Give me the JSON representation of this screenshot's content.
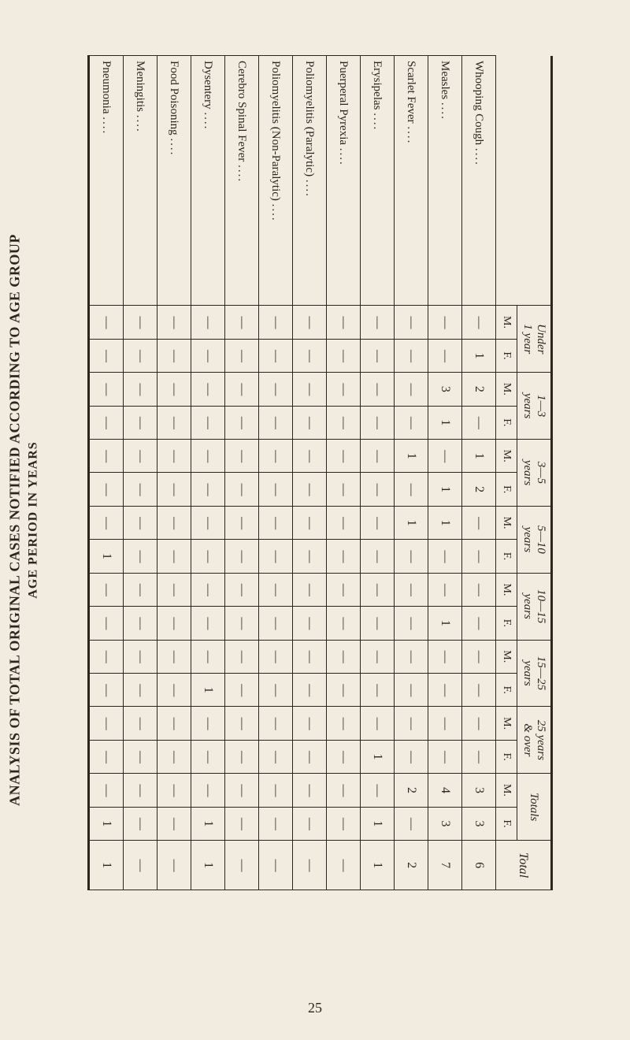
{
  "title": {
    "main": "ANALYSIS OF TOTAL ORIGINAL CASES NOTIFIED ACCORDING TO AGE GROUP",
    "sub": "AGE PERIOD IN YEARS"
  },
  "page_number": "25",
  "dash": "—",
  "sex_labels": {
    "m": "M.",
    "f": "F."
  },
  "total_label": "Total",
  "totals_label": "Totals",
  "age_groups": [
    {
      "key": "u1",
      "label": "Under\n1 year"
    },
    {
      "key": "g1_3",
      "label": "1—3\nyears"
    },
    {
      "key": "g3_5",
      "label": "3—5\nyears"
    },
    {
      "key": "g5_10",
      "label": "5—10\nyears"
    },
    {
      "key": "g10_15",
      "label": "10—15\nyears"
    },
    {
      "key": "g15_25",
      "label": "15—25\nyears"
    },
    {
      "key": "g25o",
      "label": "25 years\n& over"
    }
  ],
  "diseases": [
    "Whooping Cough",
    "Measles",
    "Scarlet Fever",
    "Erysipelas",
    "Puerperal Pyrexia",
    "Poliomyelitis (Paralytic)",
    "Poliomyelitis (Non-Paralytic)",
    "Cerebro Spinal Fever",
    "Dysentery",
    "Food Poisoning",
    "Meningitis",
    "Pneumonia"
  ],
  "rows": [
    {
      "name": "Whooping Cough",
      "u1": {
        "m": "—",
        "f": "1"
      },
      "g1_3": {
        "m": "2",
        "f": "—"
      },
      "g3_5": {
        "m": "1",
        "f": "2"
      },
      "g5_10": {
        "m": "—",
        "f": "—"
      },
      "g10_15": {
        "m": "—",
        "f": "—"
      },
      "g15_25": {
        "m": "—",
        "f": "—"
      },
      "g25o": {
        "m": "—",
        "f": "—"
      },
      "totals": {
        "m": "3",
        "f": "3"
      },
      "total": "6"
    },
    {
      "name": "Measles",
      "u1": {
        "m": "—",
        "f": "—"
      },
      "g1_3": {
        "m": "3",
        "f": "1"
      },
      "g3_5": {
        "m": "—",
        "f": "1"
      },
      "g5_10": {
        "m": "1",
        "f": "—"
      },
      "g10_15": {
        "m": "—",
        "f": "1"
      },
      "g15_25": {
        "m": "—",
        "f": "—"
      },
      "g25o": {
        "m": "—",
        "f": "—"
      },
      "totals": {
        "m": "4",
        "f": "3"
      },
      "total": "7"
    },
    {
      "name": "Scarlet Fever",
      "u1": {
        "m": "—",
        "f": "—"
      },
      "g1_3": {
        "m": "—",
        "f": "—"
      },
      "g3_5": {
        "m": "1",
        "f": "—"
      },
      "g5_10": {
        "m": "1",
        "f": "—"
      },
      "g10_15": {
        "m": "—",
        "f": "—"
      },
      "g15_25": {
        "m": "—",
        "f": "—"
      },
      "g25o": {
        "m": "—",
        "f": "—"
      },
      "totals": {
        "m": "2",
        "f": "—"
      },
      "total": "2"
    },
    {
      "name": "Erysipelas",
      "u1": {
        "m": "—",
        "f": "—"
      },
      "g1_3": {
        "m": "—",
        "f": "—"
      },
      "g3_5": {
        "m": "—",
        "f": "—"
      },
      "g5_10": {
        "m": "—",
        "f": "—"
      },
      "g10_15": {
        "m": "—",
        "f": "—"
      },
      "g15_25": {
        "m": "—",
        "f": "—"
      },
      "g25o": {
        "m": "—",
        "f": "1"
      },
      "totals": {
        "m": "—",
        "f": "1"
      },
      "total": "1"
    },
    {
      "name": "Puerperal Pyrexia",
      "u1": {
        "m": "—",
        "f": "—"
      },
      "g1_3": {
        "m": "—",
        "f": "—"
      },
      "g3_5": {
        "m": "—",
        "f": "—"
      },
      "g5_10": {
        "m": "—",
        "f": "—"
      },
      "g10_15": {
        "m": "—",
        "f": "—"
      },
      "g15_25": {
        "m": "—",
        "f": "—"
      },
      "g25o": {
        "m": "—",
        "f": "—"
      },
      "totals": {
        "m": "—",
        "f": "—"
      },
      "total": "—"
    },
    {
      "name": "Poliomyelitis (Paralytic)",
      "u1": {
        "m": "—",
        "f": "—"
      },
      "g1_3": {
        "m": "—",
        "f": "—"
      },
      "g3_5": {
        "m": "—",
        "f": "—"
      },
      "g5_10": {
        "m": "—",
        "f": "—"
      },
      "g10_15": {
        "m": "—",
        "f": "—"
      },
      "g15_25": {
        "m": "—",
        "f": "—"
      },
      "g25o": {
        "m": "—",
        "f": "—"
      },
      "totals": {
        "m": "—",
        "f": "—"
      },
      "total": "—"
    },
    {
      "name": "Poliomyelitis (Non-Paralytic)",
      "u1": {
        "m": "—",
        "f": "—"
      },
      "g1_3": {
        "m": "—",
        "f": "—"
      },
      "g3_5": {
        "m": "—",
        "f": "—"
      },
      "g5_10": {
        "m": "—",
        "f": "—"
      },
      "g10_15": {
        "m": "—",
        "f": "—"
      },
      "g15_25": {
        "m": "—",
        "f": "—"
      },
      "g25o": {
        "m": "—",
        "f": "—"
      },
      "totals": {
        "m": "—",
        "f": "—"
      },
      "total": "—"
    },
    {
      "name": "Cerebro Spinal Fever",
      "u1": {
        "m": "—",
        "f": "—"
      },
      "g1_3": {
        "m": "—",
        "f": "—"
      },
      "g3_5": {
        "m": "—",
        "f": "—"
      },
      "g5_10": {
        "m": "—",
        "f": "—"
      },
      "g10_15": {
        "m": "—",
        "f": "—"
      },
      "g15_25": {
        "m": "—",
        "f": "—"
      },
      "g25o": {
        "m": "—",
        "f": "—"
      },
      "totals": {
        "m": "—",
        "f": "—"
      },
      "total": "—"
    },
    {
      "name": "Dysentery",
      "u1": {
        "m": "—",
        "f": "—"
      },
      "g1_3": {
        "m": "—",
        "f": "—"
      },
      "g3_5": {
        "m": "—",
        "f": "—"
      },
      "g5_10": {
        "m": "—",
        "f": "—"
      },
      "g10_15": {
        "m": "—",
        "f": "—"
      },
      "g15_25": {
        "m": "—",
        "f": "1"
      },
      "g25o": {
        "m": "—",
        "f": "—"
      },
      "totals": {
        "m": "—",
        "f": "1"
      },
      "total": "1"
    },
    {
      "name": "Food Poisoning",
      "u1": {
        "m": "—",
        "f": "—"
      },
      "g1_3": {
        "m": "—",
        "f": "—"
      },
      "g3_5": {
        "m": "—",
        "f": "—"
      },
      "g5_10": {
        "m": "—",
        "f": "—"
      },
      "g10_15": {
        "m": "—",
        "f": "—"
      },
      "g15_25": {
        "m": "—",
        "f": "—"
      },
      "g25o": {
        "m": "—",
        "f": "—"
      },
      "totals": {
        "m": "—",
        "f": "—"
      },
      "total": "—"
    },
    {
      "name": "Meningitis",
      "u1": {
        "m": "—",
        "f": "—"
      },
      "g1_3": {
        "m": "—",
        "f": "—"
      },
      "g3_5": {
        "m": "—",
        "f": "—"
      },
      "g5_10": {
        "m": "—",
        "f": "—"
      },
      "g10_15": {
        "m": "—",
        "f": "—"
      },
      "g15_25": {
        "m": "—",
        "f": "—"
      },
      "g25o": {
        "m": "—",
        "f": "—"
      },
      "totals": {
        "m": "—",
        "f": "—"
      },
      "total": "—"
    },
    {
      "name": "Pneumonia",
      "u1": {
        "m": "—",
        "f": "—"
      },
      "g1_3": {
        "m": "—",
        "f": "—"
      },
      "g3_5": {
        "m": "—",
        "f": "—"
      },
      "g5_10": {
        "m": "—",
        "f": "1"
      },
      "g10_15": {
        "m": "—",
        "f": "—"
      },
      "g15_25": {
        "m": "—",
        "f": "—"
      },
      "g25o": {
        "m": "—",
        "f": "—"
      },
      "totals": {
        "m": "—",
        "f": "1"
      },
      "total": "1"
    }
  ],
  "style": {
    "bg": "#f2ece0",
    "ink": "#2b2620",
    "font": "Times New Roman",
    "title_fontsize": 18,
    "cell_fontsize": 16,
    "rule_weight_outer": 3,
    "rule_weight_inner": 1.5
  }
}
